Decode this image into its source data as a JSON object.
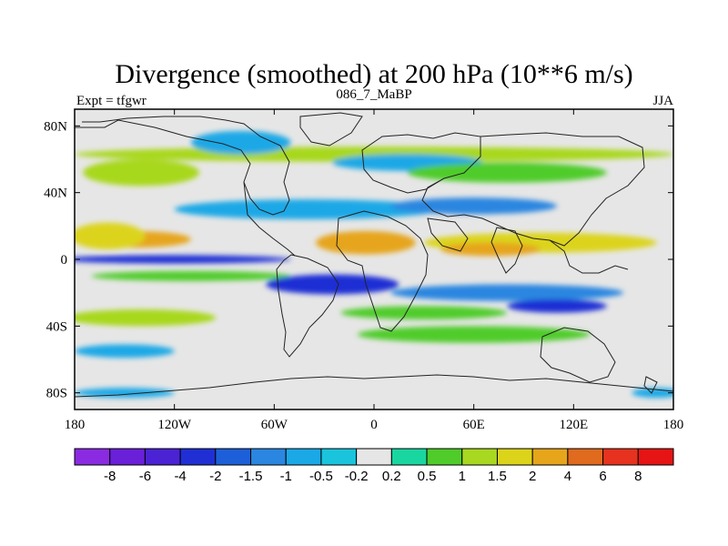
{
  "chart_data": {
    "type": "heatmap",
    "title": "Divergence (smoothed) at 200 hPa (10**6 m/s)",
    "subtitle_left": "Expt = tfgwr",
    "subtitle_center": "086_7_MaBP",
    "subtitle_right": "JJA",
    "x_ticks": [
      {
        "value": -180,
        "label": "180"
      },
      {
        "value": -120,
        "label": "120W"
      },
      {
        "value": -60,
        "label": "60W"
      },
      {
        "value": 0,
        "label": "0"
      },
      {
        "value": 60,
        "label": "60E"
      },
      {
        "value": 120,
        "label": "120E"
      },
      {
        "value": 180,
        "label": "180"
      }
    ],
    "y_ticks": [
      {
        "value": 80,
        "label": "80N"
      },
      {
        "value": 40,
        "label": "40N"
      },
      {
        "value": 0,
        "label": "0"
      },
      {
        "value": -40,
        "label": "40S"
      },
      {
        "value": -80,
        "label": "80S"
      }
    ],
    "xlim": [
      -180,
      180
    ],
    "ylim": [
      -90,
      90
    ],
    "colorbar": {
      "levels": [
        "-8",
        "-6",
        "-4",
        "-2",
        "-1.5",
        "-1",
        "-0.5",
        "-0.2",
        "0.2",
        "0.5",
        "1",
        "1.5",
        "2",
        "4",
        "6",
        "8"
      ],
      "colors": [
        "#8a2be2",
        "#6a1fd8",
        "#4b22d4",
        "#1f2fd4",
        "#1d5fd8",
        "#2a86e0",
        "#1aa8e6",
        "#19c4dc",
        "#e6e6e6",
        "#19d6a0",
        "#4fcc2a",
        "#a8d81f",
        "#dcd41a",
        "#e6a51a",
        "#e06a1e",
        "#e6321e",
        "#e61414"
      ]
    },
    "bands": [
      {
        "lat": 63,
        "lon": 0,
        "width": 360,
        "height": 9,
        "value": 1.3
      },
      {
        "lat": 52,
        "lon": -140,
        "width": 70,
        "height": 16,
        "value": 1.4
      },
      {
        "lat": 58,
        "lon": 20,
        "width": 90,
        "height": 10,
        "value": -0.8
      },
      {
        "lat": 52,
        "lon": 80,
        "width": 120,
        "height": 12,
        "value": 0.9
      },
      {
        "lat": 70,
        "lon": -80,
        "width": 60,
        "height": 14,
        "value": -0.6
      },
      {
        "lat": 30,
        "lon": -40,
        "width": 160,
        "height": 12,
        "value": -0.7
      },
      {
        "lat": 32,
        "lon": 60,
        "width": 100,
        "height": 10,
        "value": -1.2
      },
      {
        "lat": 12,
        "lon": -145,
        "width": 70,
        "height": 10,
        "value": 3.0
      },
      {
        "lat": 14,
        "lon": -160,
        "width": 45,
        "height": 16,
        "value": 1.6
      },
      {
        "lat": 10,
        "lon": -5,
        "width": 60,
        "height": 14,
        "value": 2.4
      },
      {
        "lat": 10,
        "lon": 100,
        "width": 140,
        "height": 12,
        "value": 1.8
      },
      {
        "lat": 6,
        "lon": 70,
        "width": 60,
        "height": 8,
        "value": 2.6
      },
      {
        "lat": 0,
        "lon": -120,
        "width": 140,
        "height": 5,
        "value": -2.5
      },
      {
        "lat": -10,
        "lon": -110,
        "width": 120,
        "height": 6,
        "value": 1.0
      },
      {
        "lat": -15,
        "lon": -25,
        "width": 80,
        "height": 12,
        "value": -3.2
      },
      {
        "lat": -20,
        "lon": 80,
        "width": 140,
        "height": 10,
        "value": -1.4
      },
      {
        "lat": -28,
        "lon": 110,
        "width": 60,
        "height": 8,
        "value": -2.5
      },
      {
        "lat": -35,
        "lon": -140,
        "width": 90,
        "height": 10,
        "value": 1.2
      },
      {
        "lat": -32,
        "lon": 30,
        "width": 100,
        "height": 8,
        "value": 0.6
      },
      {
        "lat": -45,
        "lon": 60,
        "width": 140,
        "height": 10,
        "value": 0.8
      },
      {
        "lat": -55,
        "lon": -150,
        "width": 60,
        "height": 8,
        "value": -0.7
      },
      {
        "lat": -80,
        "lon": -150,
        "width": 60,
        "height": 6,
        "value": -0.6
      },
      {
        "lat": -80,
        "lon": 170,
        "width": 30,
        "height": 6,
        "value": -0.6
      }
    ]
  }
}
